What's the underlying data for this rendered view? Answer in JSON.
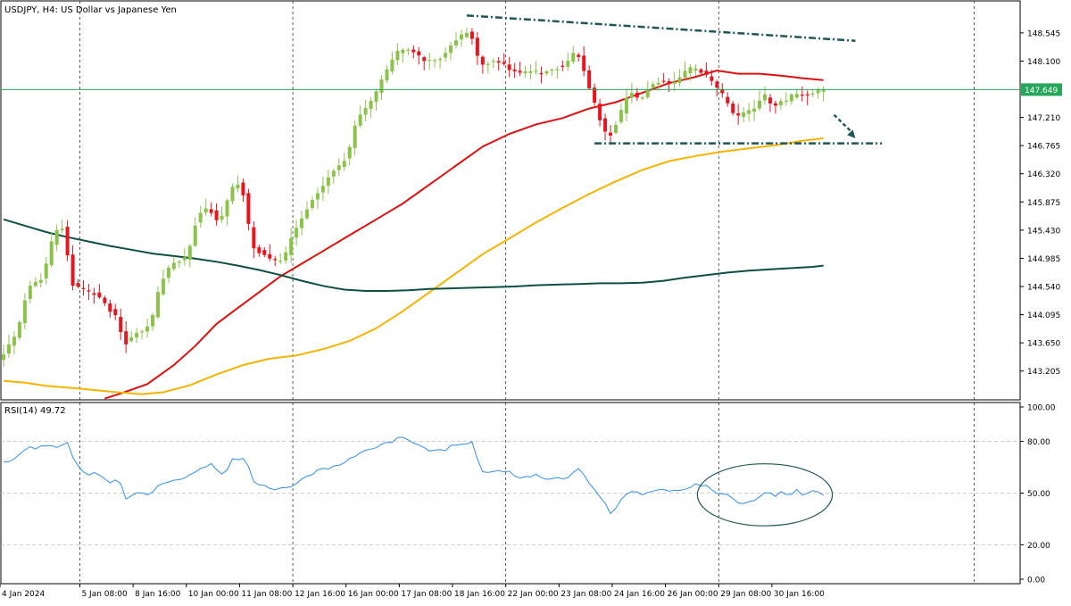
{
  "chart_data": {
    "type": "candlestick",
    "symbol_title": "USDJPY, H4:  US Dollar vs Japanese Yen",
    "colors": {
      "bull": "#8bc34a",
      "bear": "#e8141e",
      "ma_fast": "#e01010",
      "ma_mid": "#f5b400",
      "ma_slow": "#0d4f45",
      "price_line": "#26a65b",
      "rsi": "#2f8fe6",
      "annotation": "#1f5656"
    },
    "price_axis": {
      "range": [
        142.75,
        149.05
      ],
      "ticks": [
        "148.545",
        "148.100",
        "147.210",
        "146.765",
        "146.320",
        "145.875",
        "145.430",
        "144.985",
        "144.540",
        "144.095",
        "143.650",
        "143.205"
      ],
      "current_price_label": "147.649",
      "current_price": 147.649
    },
    "time_axis": {
      "bar_count": 159,
      "labels": [
        {
          "text": "4 Jan 2024",
          "bar": 0
        },
        {
          "text": "5 Jan 08:00",
          "bar": 15
        },
        {
          "text": "8 Jan 16:00",
          "bar": 25
        },
        {
          "text": "10 Jan 00:00",
          "bar": 35
        },
        {
          "text": "11 Jan 08:00",
          "bar": 45
        },
        {
          "text": "12 Jan 16:00",
          "bar": 55
        },
        {
          "text": "16 Jan 00:00",
          "bar": 65
        },
        {
          "text": "17 Jan 08:00",
          "bar": 75
        },
        {
          "text": "18 Jan 16:00",
          "bar": 85
        },
        {
          "text": "22 Jan 00:00",
          "bar": 95
        },
        {
          "text": "23 Jan 08:00",
          "bar": 105
        },
        {
          "text": "24 Jan 16:00",
          "bar": 115
        },
        {
          "text": "26 Jan 00:00",
          "bar": 125
        },
        {
          "text": "29 Jan 08:00",
          "bar": 135
        },
        {
          "text": "30 Jan 16:00",
          "bar": 145
        }
      ],
      "separator_bars": [
        15,
        55,
        95,
        135,
        183
      ]
    },
    "price_path": [
      [
        0,
        143.4
      ],
      [
        3,
        143.8
      ],
      [
        5,
        144.5
      ],
      [
        8,
        144.7
      ],
      [
        10,
        145.4
      ],
      [
        12,
        145.5
      ],
      [
        13,
        144.6
      ],
      [
        15,
        144.5
      ],
      [
        18,
        144.4
      ],
      [
        20,
        144.2
      ],
      [
        22,
        144.05
      ],
      [
        23,
        143.6
      ],
      [
        25,
        143.8
      ],
      [
        28,
        143.9
      ],
      [
        30,
        144.6
      ],
      [
        32,
        144.9
      ],
      [
        35,
        145.0
      ],
      [
        37,
        145.7
      ],
      [
        39,
        145.8
      ],
      [
        41,
        145.5
      ],
      [
        43,
        146.05
      ],
      [
        45,
        146.2
      ],
      [
        46,
        145.8
      ],
      [
        47,
        145.2
      ],
      [
        49,
        145.05
      ],
      [
        51,
        144.95
      ],
      [
        53,
        144.95
      ],
      [
        55,
        145.4
      ],
      [
        58,
        145.85
      ],
      [
        61,
        146.2
      ],
      [
        65,
        146.6
      ],
      [
        67,
        147.2
      ],
      [
        70,
        147.5
      ],
      [
        72,
        147.9
      ],
      [
        75,
        148.3
      ],
      [
        77,
        148.25
      ],
      [
        80,
        148.1
      ],
      [
        83,
        148.15
      ],
      [
        85,
        148.4
      ],
      [
        88,
        148.6
      ],
      [
        90,
        148.05
      ],
      [
        93,
        148.1
      ],
      [
        95,
        148.0
      ],
      [
        97,
        147.9
      ],
      [
        100,
        147.95
      ],
      [
        102,
        147.9
      ],
      [
        104,
        148.0
      ],
      [
        106,
        148.0
      ],
      [
        108,
        148.3
      ],
      [
        110,
        147.8
      ],
      [
        112,
        147.3
      ],
      [
        114,
        146.85
      ],
      [
        116,
        147.2
      ],
      [
        118,
        147.6
      ],
      [
        120,
        147.5
      ],
      [
        122,
        147.7
      ],
      [
        124,
        147.8
      ],
      [
        126,
        147.7
      ],
      [
        128,
        147.9
      ],
      [
        130,
        148.0
      ],
      [
        132,
        147.9
      ],
      [
        134,
        147.75
      ],
      [
        136,
        147.5
      ],
      [
        138,
        147.2
      ],
      [
        140,
        147.3
      ],
      [
        142,
        147.4
      ],
      [
        144,
        147.6
      ],
      [
        145,
        147.3
      ],
      [
        146,
        147.5
      ],
      [
        147,
        147.45
      ],
      [
        148,
        147.5
      ],
      [
        149,
        147.6
      ],
      [
        150,
        147.55
      ],
      [
        151,
        147.55
      ],
      [
        152,
        147.6
      ],
      [
        153,
        147.62
      ],
      [
        154,
        147.649
      ]
    ],
    "moving_averages": [
      {
        "name": "fast",
        "points": [
          [
            19,
            142.77
          ],
          [
            22,
            142.85
          ],
          [
            27,
            143.0
          ],
          [
            32,
            143.3
          ],
          [
            36,
            143.6
          ],
          [
            40,
            143.95
          ],
          [
            44,
            144.2
          ],
          [
            48,
            144.45
          ],
          [
            52,
            144.7
          ],
          [
            56,
            144.9
          ],
          [
            60,
            145.1
          ],
          [
            65,
            145.35
          ],
          [
            70,
            145.6
          ],
          [
            75,
            145.85
          ],
          [
            80,
            146.15
          ],
          [
            85,
            146.45
          ],
          [
            90,
            146.75
          ],
          [
            95,
            146.95
          ],
          [
            100,
            147.1
          ],
          [
            105,
            147.2
          ],
          [
            110,
            147.35
          ],
          [
            115,
            147.45
          ],
          [
            120,
            147.6
          ],
          [
            125,
            147.75
          ],
          [
            130,
            147.85
          ],
          [
            134,
            147.95
          ],
          [
            138,
            147.9
          ],
          [
            142,
            147.9
          ],
          [
            146,
            147.87
          ],
          [
            150,
            147.83
          ],
          [
            154,
            147.8
          ]
        ]
      },
      {
        "name": "mid",
        "points": [
          [
            0,
            143.05
          ],
          [
            4,
            143.02
          ],
          [
            8,
            142.97
          ],
          [
            14,
            142.93
          ],
          [
            20,
            142.88
          ],
          [
            26,
            142.84
          ],
          [
            30,
            142.87
          ],
          [
            35,
            142.98
          ],
          [
            40,
            143.15
          ],
          [
            45,
            143.3
          ],
          [
            50,
            143.4
          ],
          [
            55,
            143.45
          ],
          [
            60,
            143.55
          ],
          [
            65,
            143.68
          ],
          [
            70,
            143.88
          ],
          [
            75,
            144.15
          ],
          [
            80,
            144.45
          ],
          [
            85,
            144.75
          ],
          [
            90,
            145.05
          ],
          [
            95,
            145.3
          ],
          [
            100,
            145.55
          ],
          [
            105,
            145.78
          ],
          [
            110,
            146.0
          ],
          [
            115,
            146.2
          ],
          [
            120,
            146.38
          ],
          [
            125,
            146.52
          ],
          [
            130,
            146.6
          ],
          [
            135,
            146.67
          ],
          [
            140,
            146.72
          ],
          [
            145,
            146.77
          ],
          [
            150,
            146.84
          ],
          [
            154,
            146.88
          ]
        ]
      },
      {
        "name": "slow",
        "points": [
          [
            0,
            145.6
          ],
          [
            4,
            145.5
          ],
          [
            8,
            145.4
          ],
          [
            12,
            145.32
          ],
          [
            16,
            145.25
          ],
          [
            20,
            145.18
          ],
          [
            24,
            145.12
          ],
          [
            28,
            145.06
          ],
          [
            32,
            145.02
          ],
          [
            36,
            144.98
          ],
          [
            40,
            144.93
          ],
          [
            44,
            144.87
          ],
          [
            48,
            144.8
          ],
          [
            52,
            144.72
          ],
          [
            56,
            144.63
          ],
          [
            60,
            144.55
          ],
          [
            64,
            144.49
          ],
          [
            68,
            144.47
          ],
          [
            72,
            144.47
          ],
          [
            76,
            144.48
          ],
          [
            80,
            144.5
          ],
          [
            84,
            144.51
          ],
          [
            88,
            144.52
          ],
          [
            92,
            144.53
          ],
          [
            96,
            144.54
          ],
          [
            100,
            144.56
          ],
          [
            104,
            144.57
          ],
          [
            108,
            144.58
          ],
          [
            112,
            144.59
          ],
          [
            116,
            144.59
          ],
          [
            120,
            144.6
          ],
          [
            124,
            144.63
          ],
          [
            128,
            144.68
          ],
          [
            132,
            144.72
          ],
          [
            136,
            144.76
          ],
          [
            140,
            144.79
          ],
          [
            144,
            144.81
          ],
          [
            148,
            144.83
          ],
          [
            152,
            144.85
          ],
          [
            154,
            144.87
          ]
        ]
      }
    ],
    "annotations": {
      "upper_trendline": [
        [
          87,
          148.82
        ],
        [
          160,
          148.42
        ]
      ],
      "support_line": {
        "from_bar": 111,
        "to_bar": 165,
        "price": 146.8
      },
      "arrow": {
        "from": [
          156,
          147.25
        ],
        "to": [
          160,
          146.88
        ]
      }
    },
    "rsi_panel": {
      "label": "RSI(14) 49.72",
      "range": [
        0,
        100
      ],
      "ticks": [
        "100.00",
        "80.00",
        "50.00",
        "20.00",
        "0.00"
      ],
      "levels": [
        80,
        50,
        20
      ],
      "values": [
        [
          0,
          67
        ],
        [
          3,
          72
        ],
        [
          5,
          76
        ],
        [
          8,
          77
        ],
        [
          10,
          76
        ],
        [
          12,
          79
        ],
        [
          13,
          71
        ],
        [
          15,
          62
        ],
        [
          18,
          60
        ],
        [
          20,
          57
        ],
        [
          22,
          56
        ],
        [
          23,
          46
        ],
        [
          25,
          50
        ],
        [
          28,
          50
        ],
        [
          30,
          56
        ],
        [
          32,
          57
        ],
        [
          35,
          60
        ],
        [
          37,
          65
        ],
        [
          39,
          66
        ],
        [
          41,
          60
        ],
        [
          43,
          69
        ],
        [
          45,
          71
        ],
        [
          46,
          66
        ],
        [
          47,
          56
        ],
        [
          49,
          54
        ],
        [
          51,
          53
        ],
        [
          53,
          52
        ],
        [
          55,
          56
        ],
        [
          58,
          61
        ],
        [
          61,
          65
        ],
        [
          65,
          69
        ],
        [
          67,
          74
        ],
        [
          70,
          77
        ],
        [
          72,
          79
        ],
        [
          75,
          82
        ],
        [
          77,
          80
        ],
        [
          80,
          75
        ],
        [
          83,
          75
        ],
        [
          85,
          78
        ],
        [
          88,
          79
        ],
        [
          90,
          62
        ],
        [
          93,
          63
        ],
        [
          95,
          62
        ],
        [
          97,
          58
        ],
        [
          100,
          60
        ],
        [
          102,
          57
        ],
        [
          104,
          60
        ],
        [
          106,
          58
        ],
        [
          108,
          64
        ],
        [
          110,
          55
        ],
        [
          112,
          49
        ],
        [
          114,
          37
        ],
        [
          116,
          46
        ],
        [
          118,
          52
        ],
        [
          120,
          50
        ],
        [
          122,
          52
        ],
        [
          124,
          53
        ],
        [
          126,
          51
        ],
        [
          128,
          53
        ],
        [
          130,
          55
        ],
        [
          132,
          54
        ],
        [
          134,
          51
        ],
        [
          136,
          48
        ],
        [
          138,
          44
        ],
        [
          140,
          45
        ],
        [
          142,
          47
        ],
        [
          144,
          51
        ],
        [
          145,
          48
        ],
        [
          146,
          50
        ],
        [
          147,
          49
        ],
        [
          148,
          50
        ],
        [
          149,
          51
        ],
        [
          150,
          50
        ],
        [
          151,
          50
        ],
        [
          152,
          51
        ],
        [
          153,
          50
        ],
        [
          154,
          49.72
        ]
      ],
      "highlight": {
        "center_bar": 143,
        "center_value": 49,
        "bar_span": 22,
        "value_span": 36
      }
    }
  }
}
